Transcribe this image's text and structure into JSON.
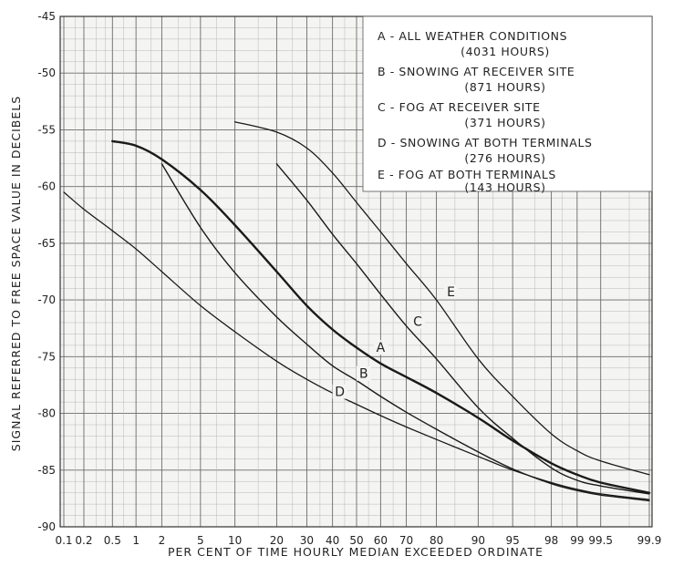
{
  "chart_data": {
    "type": "line",
    "title": "",
    "xlabel": "PER CENT OF TIME HOURLY MEDIAN EXCEEDED ORDINATE",
    "ylabel": "SIGNAL REFERRED TO FREE SPACE VALUE IN DECIBELS",
    "x_scale": "normal-probability",
    "x_ticks": [
      "0.1",
      "0.2",
      "0.5",
      "1",
      "2",
      "5",
      "10",
      "20",
      "30",
      "40",
      "50",
      "60",
      "70",
      "80",
      "90",
      "95",
      "98",
      "99",
      "99.5",
      "99.9"
    ],
    "x_tick_values": [
      0.1,
      0.2,
      0.5,
      1,
      2,
      5,
      10,
      20,
      30,
      40,
      50,
      60,
      70,
      80,
      90,
      95,
      98,
      99,
      99.5,
      99.9
    ],
    "y_ticks": [
      "-45",
      "-50",
      "-55",
      "-60",
      "-65",
      "-70",
      "-75",
      "-80",
      "-85",
      "-90"
    ],
    "ylim": [
      -90,
      -45
    ],
    "grid": true,
    "legend_position": "top-right",
    "series": [
      {
        "name": "A",
        "legend": "A - ALL WEATHER CONDITIONS",
        "hours": "(4031 HOURS)",
        "x": [
          0.5,
          1,
          2,
          5,
          10,
          20,
          30,
          40,
          50,
          60,
          70,
          80,
          90,
          95,
          98,
          99,
          99.5,
          99.9
        ],
        "y": [
          -56,
          -56.4,
          -57.6,
          -60.3,
          -63.4,
          -67.5,
          -70.5,
          -72.6,
          -74.2,
          -75.6,
          -76.8,
          -78.2,
          -80.4,
          -82.4,
          -84.4,
          -85.4,
          -86.1,
          -87
        ],
        "label_at": [
          60,
          -74.5
        ]
      },
      {
        "name": "B",
        "legend": "B - SNOWING AT RECEIVER SITE",
        "hours": "(871 HOURS)",
        "x": [
          2,
          5,
          10,
          20,
          30,
          40,
          50,
          60,
          70,
          80,
          90,
          95,
          98,
          99,
          99.5,
          99.9
        ],
        "y": [
          -58,
          -63.6,
          -67.6,
          -71.5,
          -73.9,
          -75.8,
          -77.1,
          -78.5,
          -79.9,
          -81.4,
          -83.4,
          -84.9,
          -86.2,
          -86.8,
          -87.2,
          -87.7
        ],
        "label_at": [
          53,
          -76.8
        ]
      },
      {
        "name": "C",
        "legend": "C - FOG AT RECEIVER SITE",
        "hours": "(371 HOURS)",
        "x": [
          20,
          30,
          40,
          50,
          60,
          70,
          80,
          90,
          95,
          98,
          99,
          99.5,
          99.9
        ],
        "y": [
          -58,
          -61.2,
          -64.2,
          -66.8,
          -69.5,
          -72.3,
          -75.2,
          -79.5,
          -82.2,
          -84.8,
          -85.9,
          -86.4,
          -87.1
        ],
        "label_at": [
          74,
          -72.2
        ]
      },
      {
        "name": "D",
        "legend": "D - SNOWING AT BOTH TERMINALS",
        "hours": "(276 HOURS)",
        "x": [
          0.1,
          0.2,
          0.5,
          1,
          2,
          5,
          10,
          20,
          30,
          40,
          50,
          60,
          70,
          80,
          90,
          95,
          98,
          99,
          99.5,
          99.9
        ],
        "y": [
          -60.5,
          -62,
          -63.9,
          -65.5,
          -67.5,
          -70.5,
          -72.8,
          -75.4,
          -77,
          -78.2,
          -79.2,
          -80.2,
          -81.2,
          -82.3,
          -83.8,
          -85,
          -86.1,
          -86.7,
          -87.1,
          -87.6
        ],
        "label_at": [
          43,
          -78.4
        ]
      },
      {
        "name": "E",
        "legend": "E - FOG AT BOTH TERMINALS",
        "hours": "(143 HOURS)",
        "x": [
          10,
          20,
          30,
          40,
          50,
          60,
          70,
          80,
          90,
          95,
          98,
          99,
          99.5,
          99.9
        ],
        "y": [
          -54.3,
          -55.2,
          -56.6,
          -58.8,
          -61.4,
          -64,
          -66.8,
          -70,
          -75.2,
          -78.5,
          -81.8,
          -83.3,
          -84.2,
          -85.4
        ],
        "label_at": [
          84,
          -69.6
        ]
      }
    ]
  }
}
